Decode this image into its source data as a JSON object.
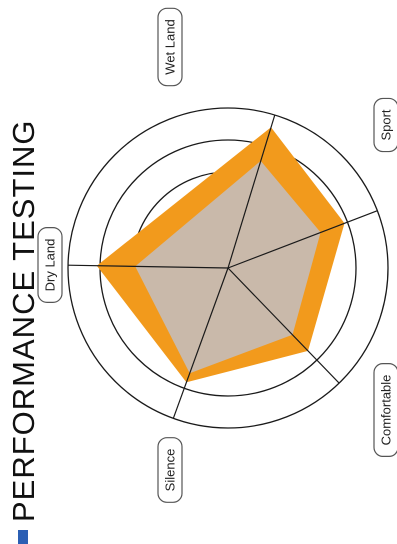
{
  "title": "PERFORMANCE TESTING",
  "colors": {
    "accent_bar": "#2b5fb4",
    "outer_series": "#f29a1c",
    "inner_series": "#c9b9aa",
    "grid": "#1a1a1a",
    "label_border": "#555555"
  },
  "chart_data": {
    "type": "radar",
    "title": "PERFORMANCE TESTING",
    "axes": [
      "Wet Land",
      "Sport",
      "Comfortable",
      "Silence",
      "Dry Land"
    ],
    "range": [
      0,
      5
    ],
    "rings": 5,
    "series": [
      {
        "values": [
          4.6,
          3.9,
          3.6,
          3.8,
          4.1
        ]
      },
      {
        "values": [
          3.5,
          3.1,
          2.9,
          3.5,
          2.9
        ]
      }
    ]
  }
}
